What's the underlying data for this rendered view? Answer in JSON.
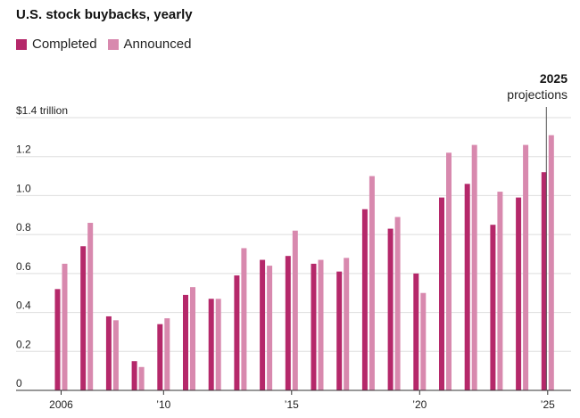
{
  "chart_data": {
    "type": "bar",
    "title": "U.S. stock buybacks, yearly",
    "ylabel": "",
    "xlabel": "",
    "y_unit_label": "$1.4 trillion",
    "ylim": [
      0,
      1.4
    ],
    "grid": true,
    "legend_placement": "top-left",
    "x": [
      2006,
      2007,
      2008,
      2009,
      2010,
      2011,
      2012,
      2013,
      2014,
      2015,
      2016,
      2017,
      2018,
      2019,
      2020,
      2021,
      2022,
      2023,
      2024,
      2025
    ],
    "x_ticks": [
      {
        "year": 2006,
        "label": "2006"
      },
      {
        "year": 2010,
        "label": "’10"
      },
      {
        "year": 2015,
        "label": "’15"
      },
      {
        "year": 2020,
        "label": "’20"
      },
      {
        "year": 2025,
        "label": "’25"
      }
    ],
    "y_ticks": [
      {
        "value": 1.4,
        "label": "$1.4 trillion"
      },
      {
        "value": 1.2,
        "label": "1.2"
      },
      {
        "value": 1.0,
        "label": "1.0"
      },
      {
        "value": 0.8,
        "label": "0.8"
      },
      {
        "value": 0.6,
        "label": "0.6"
      },
      {
        "value": 0.4,
        "label": "0.4"
      },
      {
        "value": 0.2,
        "label": "0.2"
      },
      {
        "value": 0,
        "label": "0"
      }
    ],
    "series": [
      {
        "name": "Completed",
        "color": "#b5286a",
        "values": [
          0.52,
          0.74,
          0.38,
          0.15,
          0.34,
          0.49,
          0.47,
          0.59,
          0.67,
          0.69,
          0.65,
          0.61,
          0.93,
          0.83,
          0.6,
          0.99,
          1.06,
          0.85,
          0.99,
          1.12
        ]
      },
      {
        "name": "Announced",
        "color": "#d889ae",
        "values": [
          0.65,
          0.86,
          0.36,
          0.12,
          0.37,
          0.53,
          0.47,
          0.73,
          0.64,
          0.82,
          0.67,
          0.68,
          1.1,
          0.89,
          0.5,
          1.22,
          1.26,
          1.02,
          1.26,
          1.31
        ]
      }
    ],
    "annotations": [
      {
        "year": 2025,
        "title": "2025",
        "text": "projections"
      }
    ]
  }
}
